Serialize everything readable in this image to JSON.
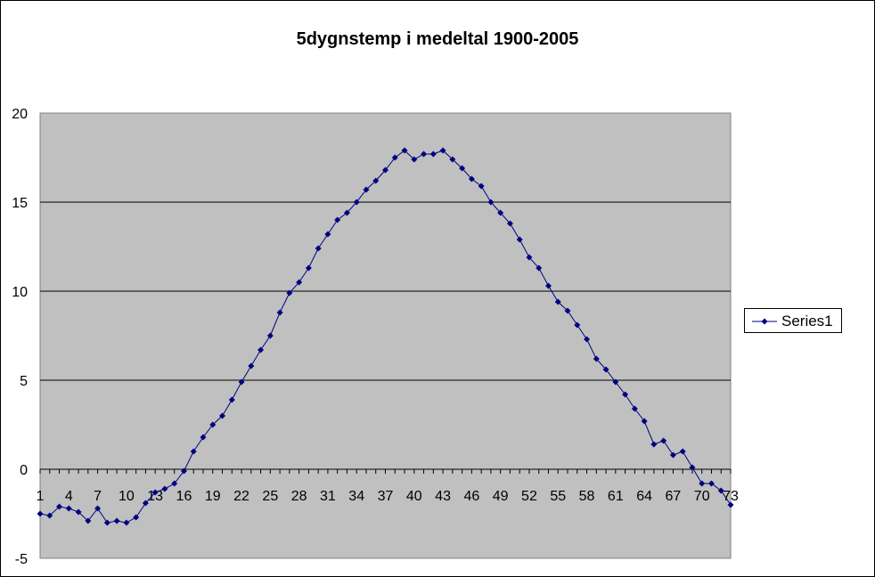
{
  "chart_data": {
    "type": "line",
    "title": "5dygnstemp i medeltal 1900-2005",
    "xlabel": "",
    "ylabel": "",
    "ylim": [
      -5,
      20
    ],
    "y_ticks": [
      "-5",
      "0",
      "5",
      "10",
      "15",
      "20"
    ],
    "x_tick_labels": [
      "1",
      "4",
      "7",
      "10",
      "13",
      "16",
      "19",
      "22",
      "25",
      "28",
      "31",
      "34",
      "37",
      "40",
      "43",
      "46",
      "49",
      "52",
      "55",
      "58",
      "61",
      "64",
      "67",
      "70",
      "73"
    ],
    "x": [
      1,
      2,
      3,
      4,
      5,
      6,
      7,
      8,
      9,
      10,
      11,
      12,
      13,
      14,
      15,
      16,
      17,
      18,
      19,
      20,
      21,
      22,
      23,
      24,
      25,
      26,
      27,
      28,
      29,
      30,
      31,
      32,
      33,
      34,
      35,
      36,
      37,
      38,
      39,
      40,
      41,
      42,
      43,
      44,
      45,
      46,
      47,
      48,
      49,
      50,
      51,
      52,
      53,
      54,
      55,
      56,
      57,
      58,
      59,
      60,
      61,
      62,
      63,
      64,
      65,
      66,
      67,
      68,
      69,
      70,
      71,
      72,
      73
    ],
    "grid": "horizontal",
    "legend_position": "right",
    "plot_background": "#c0c0c0",
    "series": [
      {
        "name": "Series1",
        "color": "#000080",
        "marker": "diamond",
        "values": [
          -2.5,
          -2.6,
          -2.1,
          -2.2,
          -2.4,
          -2.9,
          -2.2,
          -3.0,
          -2.9,
          -3.0,
          -2.7,
          -1.9,
          -1.3,
          -1.1,
          -0.8,
          -0.1,
          1.0,
          1.8,
          2.5,
          3.0,
          3.9,
          4.9,
          5.8,
          6.7,
          7.5,
          8.8,
          9.9,
          10.5,
          11.3,
          12.4,
          13.2,
          14.0,
          14.4,
          15.0,
          15.7,
          16.2,
          16.8,
          17.5,
          17.9,
          17.4,
          17.7,
          17.7,
          17.9,
          17.4,
          16.9,
          16.3,
          15.9,
          15.0,
          14.4,
          13.8,
          12.9,
          11.9,
          11.3,
          10.3,
          9.4,
          8.9,
          8.1,
          7.3,
          6.2,
          5.6,
          4.9,
          4.2,
          3.4,
          2.7,
          1.4,
          1.6,
          0.8,
          1.0,
          0.1,
          -0.8,
          -0.8,
          -1.2,
          -2.0
        ]
      }
    ]
  }
}
